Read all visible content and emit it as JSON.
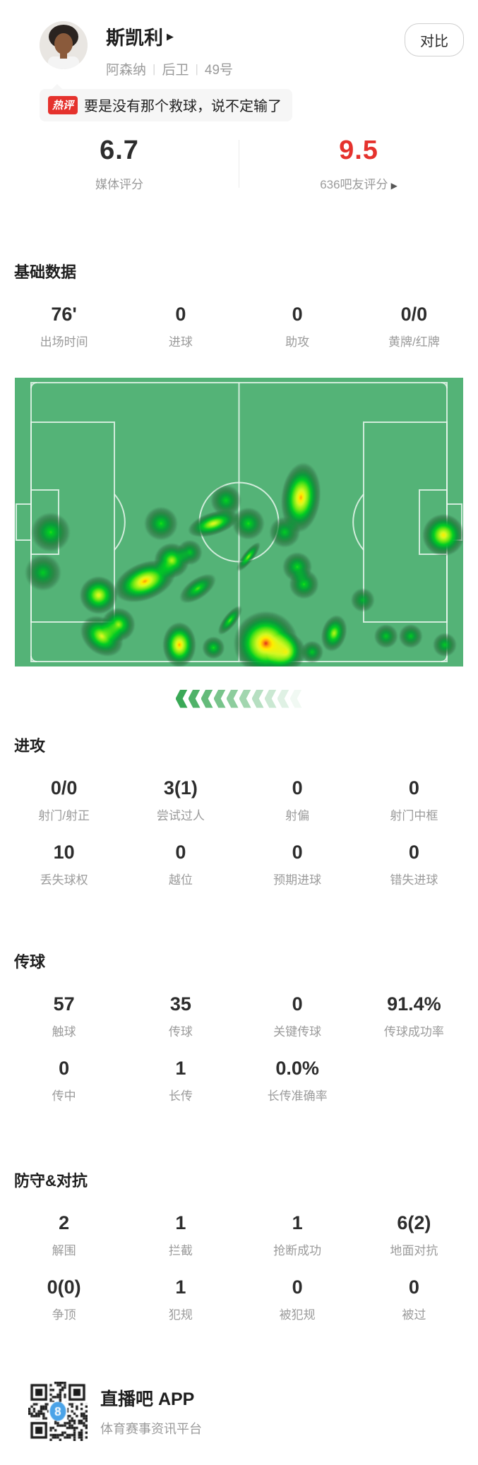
{
  "header": {
    "player_name": "斯凯利",
    "name_arrow": "▶",
    "team": "阿森纳",
    "position": "后卫",
    "number": "49号",
    "separator": "|",
    "compare_button": "对比"
  },
  "hot_comment": {
    "badge": "热评",
    "text": "要是没有那个救球，说不定输了"
  },
  "ratings": {
    "media": {
      "value": "6.7",
      "label": "媒体评分"
    },
    "fans": {
      "value": "9.5",
      "label": "636吧友评分",
      "arrow": "▶",
      "color": "#e5322d"
    }
  },
  "sections": {
    "basic": {
      "title": "基础数据",
      "stats": [
        {
          "value": "76'",
          "label": "出场时间"
        },
        {
          "value": "0",
          "label": "进球"
        },
        {
          "value": "0",
          "label": "助攻"
        },
        {
          "value": "0/0",
          "label": "黄牌/红牌"
        }
      ]
    },
    "attack": {
      "title": "进攻",
      "stats": [
        {
          "value": "0/0",
          "label": "射门/射正"
        },
        {
          "value": "3(1)",
          "label": "尝试过人"
        },
        {
          "value": "0",
          "label": "射偏"
        },
        {
          "value": "0",
          "label": "射门中框"
        },
        {
          "value": "10",
          "label": "丢失球权"
        },
        {
          "value": "0",
          "label": "越位"
        },
        {
          "value": "0",
          "label": "预期进球"
        },
        {
          "value": "0",
          "label": "错失进球"
        }
      ]
    },
    "passing": {
      "title": "传球",
      "stats": [
        {
          "value": "57",
          "label": "触球"
        },
        {
          "value": "35",
          "label": "传球"
        },
        {
          "value": "0",
          "label": "关键传球"
        },
        {
          "value": "91.4%",
          "label": "传球成功率"
        },
        {
          "value": "0",
          "label": "传中"
        },
        {
          "value": "1",
          "label": "长传"
        },
        {
          "value": "0.0%",
          "label": "长传准确率"
        }
      ]
    },
    "defense": {
      "title": "防守&对抗",
      "stats": [
        {
          "value": "2",
          "label": "解围"
        },
        {
          "value": "1",
          "label": "拦截"
        },
        {
          "value": "1",
          "label": "抢断成功"
        },
        {
          "value": "6(2)",
          "label": "地面对抗"
        },
        {
          "value": "0(0)",
          "label": "争顶"
        },
        {
          "value": "1",
          "label": "犯规"
        },
        {
          "value": "0",
          "label": "被犯规"
        },
        {
          "value": "0",
          "label": "被过"
        }
      ]
    }
  },
  "heatmap": {
    "pitch_color": "#54b377",
    "line_color": "#e8f6ec",
    "direction": "left",
    "chevron_count": 10,
    "chevron_rgb": [
      58,
      169,
      86
    ],
    "points": [
      {
        "x": 0.08,
        "y": 0.535,
        "r": 28,
        "v": 0.55
      },
      {
        "x": 0.063,
        "y": 0.675,
        "r": 26,
        "v": 0.5
      },
      {
        "x": 0.326,
        "y": 0.505,
        "r": 24,
        "v": 0.55
      },
      {
        "x": 0.471,
        "y": 0.425,
        "r": 22,
        "v": 0.52
      },
      {
        "x": 0.443,
        "y": 0.505,
        "r": 26,
        "v": 0.8,
        "sx": 1.45,
        "sy": 0.62,
        "rot": -18
      },
      {
        "x": 0.521,
        "y": 0.505,
        "r": 23,
        "v": 0.55
      },
      {
        "x": 0.602,
        "y": 0.535,
        "r": 22,
        "v": 0.5
      },
      {
        "x": 0.638,
        "y": 0.415,
        "r": 40,
        "v": 0.92,
        "sx": 0.7,
        "sy": 1.25,
        "rot": 6
      },
      {
        "x": 0.956,
        "y": 0.545,
        "r": 30,
        "v": 0.85
      },
      {
        "x": 0.39,
        "y": 0.605,
        "r": 18,
        "v": 0.5
      },
      {
        "x": 0.35,
        "y": 0.633,
        "r": 25,
        "v": 0.72
      },
      {
        "x": 0.29,
        "y": 0.705,
        "r": 34,
        "v": 0.93,
        "sx": 1.35,
        "sy": 0.78,
        "rot": -22
      },
      {
        "x": 0.187,
        "y": 0.753,
        "r": 27,
        "v": 0.8
      },
      {
        "x": 0.408,
        "y": 0.73,
        "r": 24,
        "v": 0.6,
        "sx": 1.25,
        "sy": 0.6,
        "rot": -35
      },
      {
        "x": 0.521,
        "y": 0.62,
        "r": 17,
        "v": 0.68,
        "sx": 1.5,
        "sy": 0.45,
        "rot": -52
      },
      {
        "x": 0.63,
        "y": 0.655,
        "r": 21,
        "v": 0.55
      },
      {
        "x": 0.645,
        "y": 0.715,
        "r": 21,
        "v": 0.55
      },
      {
        "x": 0.776,
        "y": 0.77,
        "r": 17,
        "v": 0.45
      },
      {
        "x": 0.48,
        "y": 0.84,
        "r": 18,
        "v": 0.62,
        "sx": 1.4,
        "sy": 0.5,
        "rot": -52
      },
      {
        "x": 0.56,
        "y": 0.92,
        "r": 46,
        "v": 1.0
      },
      {
        "x": 0.605,
        "y": 0.95,
        "r": 28,
        "v": 0.72
      },
      {
        "x": 0.367,
        "y": 0.925,
        "r": 28,
        "v": 0.92,
        "sx": 0.85,
        "sy": 1.15
      },
      {
        "x": 0.443,
        "y": 0.935,
        "r": 16,
        "v": 0.55
      },
      {
        "x": 0.712,
        "y": 0.885,
        "r": 22,
        "v": 0.72,
        "sx": 0.8,
        "sy": 1.2,
        "rot": 15
      },
      {
        "x": 0.663,
        "y": 0.95,
        "r": 16,
        "v": 0.5
      },
      {
        "x": 0.828,
        "y": 0.895,
        "r": 17,
        "v": 0.5
      },
      {
        "x": 0.883,
        "y": 0.895,
        "r": 17,
        "v": 0.5
      },
      {
        "x": 0.959,
        "y": 0.925,
        "r": 17,
        "v": 0.5
      },
      {
        "x": 0.194,
        "y": 0.895,
        "r": 28,
        "v": 0.78,
        "sx": 1.2,
        "sy": 0.9,
        "rot": 40
      },
      {
        "x": 0.231,
        "y": 0.855,
        "r": 24,
        "v": 0.7
      }
    ]
  },
  "footer": {
    "app_name": "直播吧 APP",
    "tagline": "体育赛事资讯平台",
    "qr_logo": "8",
    "qr_logo_color": "#4aa3e8"
  },
  "colors": {
    "accent_red": "#e5322d",
    "pitch_green": "#54b377",
    "chevron_green": "#3aa956"
  }
}
